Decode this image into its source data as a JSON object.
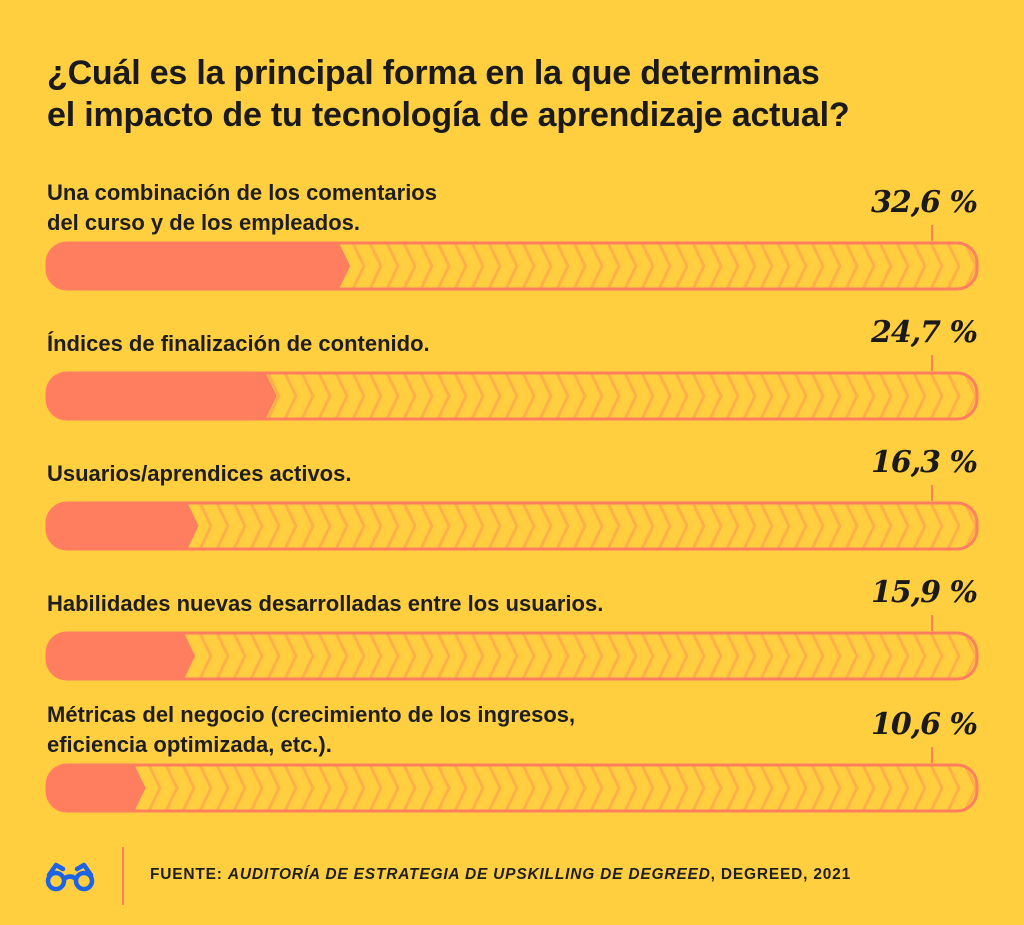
{
  "title": {
    "lines": [
      "¿Cuál es la principal forma en la que determinas",
      "el impacto de tu tecnología de aprendizaje actual?"
    ]
  },
  "colors": {
    "background": "#FFCF40",
    "fill": "#FF7E5F",
    "chevron": "#FFAF4A",
    "outline": "#FF7E5F",
    "text": "#1A1A1A",
    "logo": "#1D63E6"
  },
  "chart_data": {
    "type": "bar",
    "orientation": "horizontal",
    "title": "¿Cuál es la principal forma en la que determinas el impacto de tu tecnología de aprendizaje actual?",
    "categories": [
      "Una combinación de los comentarios del curso y de los empleados.",
      "Índices de finalización de contenido.",
      "Usuarios/aprendices activos.",
      "Habilidades nuevas desarrolladas entre los usuarios.",
      "Métricas del negocio (crecimiento de los ingresos, eficiencia optimizada, etc.)."
    ],
    "values": [
      32.6,
      24.7,
      16.3,
      15.9,
      10.6
    ],
    "unit": "%",
    "xlim": [
      0,
      100
    ],
    "grid": false,
    "legend": "none",
    "items": [
      {
        "label_lines": [
          "Una combinación de los comentarios",
          "del curso y de los empleados."
        ],
        "value": 32.6,
        "value_label": "32,6 %"
      },
      {
        "label_lines": [
          "Índices de finalización de contenido."
        ],
        "value": 24.7,
        "value_label": "24,7 %"
      },
      {
        "label_lines": [
          "Usuarios/aprendices activos."
        ],
        "value": 16.3,
        "value_label": "16,3 %"
      },
      {
        "label_lines": [
          "Habilidades nuevas desarrolladas entre los usuarios."
        ],
        "value": 15.9,
        "value_label": "15,9 %"
      },
      {
        "label_lines": [
          "Métricas del negocio (crecimiento de los ingresos,",
          "eficiencia optimizada, etc.)."
        ],
        "value": 10.6,
        "value_label": "10,6 %"
      }
    ]
  },
  "footer": {
    "logo_icon": "glasses-icon",
    "prefix": "FUENTE: ",
    "source_italic": "AUDITORÍA DE ESTRATEGIA DE UPSKILLING DE DEGREED",
    "suffix": ", DEGREED, 2021"
  }
}
